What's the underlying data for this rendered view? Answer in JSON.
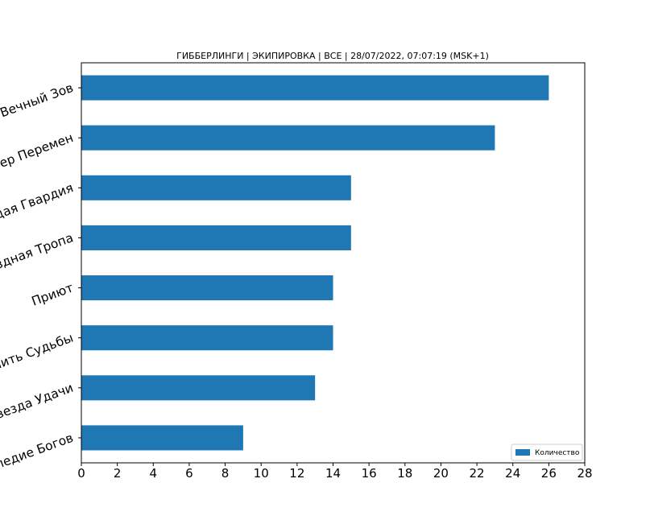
{
  "chart_data": {
    "type": "bar",
    "orientation": "horizontal",
    "title": "ГИББЕРЛИНГИ | ЭКИПИРОВКА | ВСЕ | 28/07/2022, 07:07:19 (MSK+1)",
    "xlabel": "",
    "ylabel": "",
    "categories": [
      "Вечный Зов",
      "Ветер Перемен",
      "Молодая Гвардия",
      "Звездная Тропа",
      "Приют",
      "Нить Судьбы",
      "Звезда Удачи",
      "Наследие Богов"
    ],
    "series": [
      {
        "name": "Количество",
        "values": [
          26,
          23,
          15,
          15,
          14,
          14,
          13,
          9
        ]
      }
    ],
    "xlim": [
      0,
      28
    ],
    "xticks": [
      0,
      2,
      4,
      6,
      8,
      10,
      12,
      14,
      16,
      18,
      20,
      22,
      24,
      26,
      28
    ],
    "grid": false,
    "legend_position": "lower-right",
    "colors": {
      "bar": "#1f77b4",
      "axis": "#000000",
      "background": "#ffffff"
    }
  }
}
